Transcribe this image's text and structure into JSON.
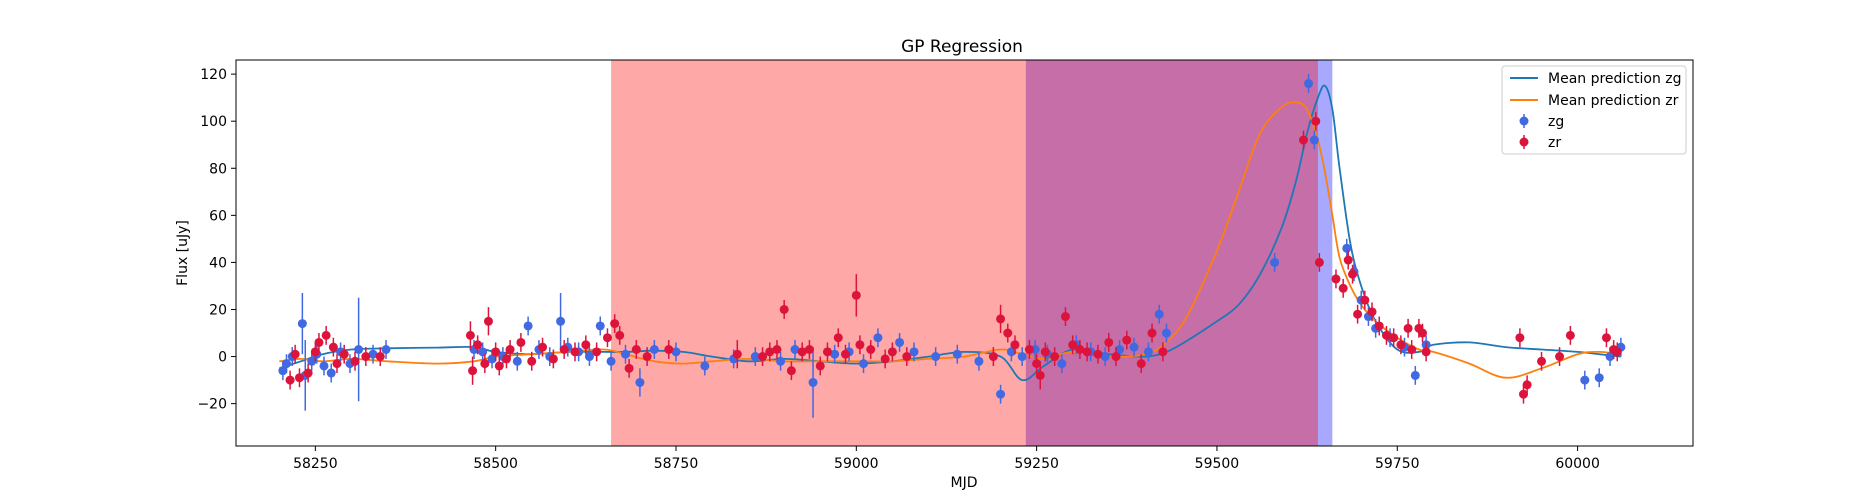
{
  "chart_data": {
    "type": "scatter",
    "title": "GP Regression",
    "xlabel": "MJD",
    "ylabel": "Flux [uJy]",
    "xlim": [
      58140,
      60160
    ],
    "ylim": [
      -38,
      126
    ],
    "xticks": [
      58250,
      58500,
      58750,
      59000,
      59250,
      59500,
      59750,
      60000
    ],
    "yticks": [
      -20,
      0,
      20,
      40,
      60,
      80,
      100,
      120
    ],
    "legend_placement": "top-right",
    "shaded_regions": [
      {
        "x0": 58660,
        "x1": 59235,
        "color": "#ff0000",
        "opacity": 0.34
      },
      {
        "x0": 59235,
        "x1": 59660,
        "color": "#0000ff",
        "opacity": 0.34
      },
      {
        "x0": 59235,
        "x1": 59640,
        "color": "#ff0000",
        "opacity": 0.34
      }
    ],
    "lines": [
      {
        "name": "Mean prediction zg",
        "color": "#1f77b4",
        "x": [
          58200,
          58230,
          58260,
          58300,
          58350,
          58420,
          58470,
          58500,
          58550,
          58600,
          58650,
          58680,
          58720,
          58760,
          58800,
          58850,
          58900,
          58950,
          59000,
          59050,
          59100,
          59150,
          59200,
          59230,
          59260,
          59300,
          59350,
          59400,
          59430,
          59460,
          59500,
          59530,
          59560,
          59590,
          59610,
          59625,
          59640,
          59650,
          59660,
          59670,
          59685,
          59700,
          59720,
          59750,
          59780,
          59800,
          59850,
          59900,
          59950,
          60000,
          60030,
          60060
        ],
        "y": [
          -5,
          -2,
          1,
          3,
          3.5,
          3.8,
          4,
          2,
          1,
          2,
          2,
          2,
          2.5,
          2,
          0,
          -2,
          -1,
          -2,
          -3,
          -2,
          0,
          2,
          0,
          -10,
          -4,
          3,
          1,
          0,
          2,
          7,
          15,
          22,
          35,
          55,
          75,
          95,
          110,
          115,
          105,
          80,
          48,
          30,
          15,
          3,
          2,
          5,
          6,
          4,
          3,
          2,
          1,
          0
        ]
      },
      {
        "name": "Mean prediction zr",
        "color": "#ff7f0e",
        "x": [
          58200,
          58230,
          58260,
          58300,
          58350,
          58420,
          58470,
          58500,
          58550,
          58600,
          58650,
          58680,
          58720,
          58760,
          58800,
          58850,
          58900,
          58950,
          59000,
          59050,
          59100,
          59150,
          59200,
          59230,
          59260,
          59300,
          59350,
          59400,
          59430,
          59460,
          59500,
          59530,
          59560,
          59590,
          59610,
          59625,
          59640,
          59650,
          59660,
          59670,
          59685,
          59700,
          59720,
          59750,
          59780,
          59800,
          59850,
          59900,
          59950,
          60000,
          60030,
          60060
        ],
        "y": [
          -2,
          -1,
          -2,
          -1,
          -2,
          -3,
          -2,
          0,
          1,
          2,
          3,
          1,
          -2,
          -3,
          -2,
          -1,
          -2,
          -2,
          -2,
          -2,
          -1,
          0,
          3,
          1,
          -1,
          2,
          0,
          1,
          6,
          18,
          45,
          70,
          95,
          106,
          108,
          105,
          92,
          78,
          60,
          42,
          30,
          22,
          15,
          8,
          3,
          2,
          -3,
          -9,
          -5,
          1,
          2,
          1
        ]
      }
    ],
    "scatter_series": [
      {
        "name": "zg",
        "color": "#4169e1",
        "x": [
          58205,
          58210,
          58218,
          58232,
          58236,
          58245,
          58252,
          58262,
          58272,
          58285,
          58298,
          58310,
          58330,
          58348,
          58470,
          58482,
          58495,
          58510,
          58530,
          58545,
          58560,
          58575,
          58590,
          58600,
          58615,
          58630,
          58645,
          58660,
          58680,
          58700,
          58720,
          58750,
          58790,
          58830,
          58860,
          58895,
          58915,
          58940,
          58970,
          58990,
          59010,
          59030,
          59060,
          59080,
          59110,
          59140,
          59170,
          59200,
          59215,
          59230,
          59248,
          59265,
          59285,
          59305,
          59325,
          59345,
          59365,
          59385,
          59405,
          59420,
          59430,
          59580,
          59627,
          59635,
          59680,
          59690,
          59700,
          59710,
          59720,
          59740,
          59760,
          59775,
          59790,
          60010,
          60030,
          60045,
          60060
        ],
        "y": [
          -6,
          -3,
          0,
          14,
          -8,
          -2,
          1,
          -4,
          -7,
          2,
          -3,
          3,
          1,
          3,
          3,
          2,
          -1,
          0,
          -2,
          13,
          3,
          0,
          15,
          4,
          2,
          0,
          13,
          -2,
          1,
          -11,
          3,
          2,
          -4,
          -1,
          0,
          -2,
          3,
          -11,
          1,
          2,
          -3,
          8,
          6,
          2,
          0,
          1,
          -2,
          -16,
          2,
          0,
          3,
          1,
          -3,
          5,
          2,
          0,
          3,
          4,
          2,
          18,
          10,
          40,
          116,
          92,
          46,
          36,
          24,
          17,
          12,
          8,
          4,
          -8,
          5,
          -10,
          -9,
          0,
          4
        ],
        "err": [
          4,
          4,
          4,
          13,
          15,
          4,
          4,
          4,
          4,
          4,
          4,
          22,
          4,
          4,
          4,
          4,
          4,
          4,
          4,
          4,
          4,
          4,
          12,
          4,
          4,
          4,
          4,
          4,
          4,
          6,
          4,
          4,
          4,
          4,
          4,
          4,
          4,
          15,
          4,
          4,
          4,
          4,
          4,
          4,
          4,
          4,
          4,
          4,
          4,
          4,
          4,
          4,
          4,
          4,
          4,
          4,
          4,
          4,
          4,
          4,
          4,
          4,
          4,
          4,
          4,
          4,
          4,
          4,
          4,
          4,
          4,
          4,
          4,
          4,
          4,
          4,
          4
        ]
      },
      {
        "name": "zr",
        "color": "#dc143c",
        "x": [
          58215,
          58222,
          58228,
          58240,
          58250,
          58255,
          58265,
          58275,
          58280,
          58290,
          58305,
          58320,
          58340,
          58465,
          58468,
          58475,
          58485,
          58490,
          58500,
          58505,
          58515,
          58520,
          58535,
          58550,
          58565,
          58580,
          58595,
          58610,
          58625,
          58640,
          58655,
          58665,
          58672,
          58685,
          58695,
          58710,
          58740,
          58835,
          58870,
          58880,
          58890,
          58900,
          58910,
          58925,
          58935,
          58950,
          58960,
          58975,
          58985,
          59000,
          59005,
          59020,
          59040,
          59050,
          59070,
          59190,
          59200,
          59210,
          59220,
          59240,
          59250,
          59255,
          59262,
          59275,
          59290,
          59300,
          59310,
          59320,
          59335,
          59350,
          59360,
          59375,
          59395,
          59410,
          59425,
          59620,
          59637,
          59642,
          59665,
          59675,
          59682,
          59688,
          59695,
          59705,
          59715,
          59725,
          59735,
          59745,
          59755,
          59765,
          59770,
          59780,
          59785,
          59790,
          59920,
          59925,
          59930,
          59950,
          59975,
          59990,
          60040,
          60050,
          60055
        ],
        "y": [
          -10,
          1,
          -9,
          -7,
          2,
          6,
          9,
          4,
          -3,
          1,
          -2,
          0,
          0,
          9,
          -6,
          5,
          -3,
          15,
          2,
          -4,
          -1,
          3,
          6,
          -2,
          4,
          -1,
          3,
          2,
          5,
          2,
          8,
          14,
          9,
          -5,
          3,
          0,
          3,
          1,
          0,
          2,
          3,
          20,
          -6,
          2,
          3,
          -4,
          2,
          8,
          1,
          26,
          5,
          3,
          -1,
          2,
          0,
          0,
          16,
          10,
          5,
          3,
          -3,
          -8,
          2,
          0,
          17,
          5,
          3,
          2,
          1,
          6,
          0,
          7,
          -3,
          10,
          2,
          92,
          100,
          40,
          33,
          29,
          41,
          35,
          18,
          24,
          19,
          13,
          9,
          8,
          5,
          12,
          3,
          12,
          10,
          2,
          8,
          -16,
          -12,
          -2,
          0,
          9,
          8,
          3,
          2
        ],
        "err": [
          4,
          4,
          4,
          4,
          4,
          4,
          4,
          4,
          4,
          4,
          4,
          4,
          4,
          6,
          6,
          4,
          4,
          6,
          4,
          4,
          4,
          4,
          4,
          4,
          4,
          4,
          4,
          4,
          4,
          4,
          4,
          4,
          4,
          4,
          4,
          4,
          4,
          6,
          4,
          4,
          4,
          4,
          4,
          4,
          4,
          4,
          4,
          4,
          4,
          9,
          4,
          4,
          4,
          4,
          4,
          4,
          6,
          4,
          4,
          4,
          4,
          6,
          4,
          4,
          4,
          4,
          4,
          4,
          4,
          4,
          4,
          4,
          4,
          4,
          4,
          4,
          4,
          4,
          4,
          4,
          4,
          4,
          4,
          4,
          4,
          4,
          4,
          4,
          4,
          4,
          4,
          4,
          4,
          4,
          4,
          4,
          4,
          4,
          4,
          4,
          4,
          4,
          4
        ]
      }
    ]
  }
}
